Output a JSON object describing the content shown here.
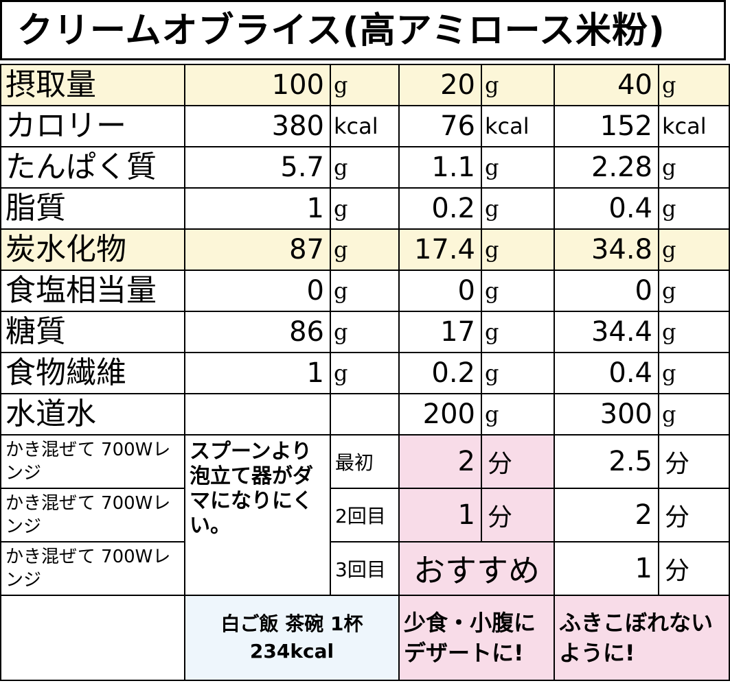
{
  "title": "クリームオブライス(高アミロース米粉)",
  "rows": [
    {
      "label": "摂取量",
      "hl": true,
      "v": [
        "100",
        "20",
        "40"
      ],
      "u": [
        "g",
        "g",
        "g"
      ]
    },
    {
      "label": "カロリー",
      "hl": false,
      "v": [
        "380",
        "76",
        "152"
      ],
      "u": [
        "kcal",
        "kcal",
        "kcal"
      ]
    },
    {
      "label": "たんぱく質",
      "hl": false,
      "v": [
        "5.7",
        "1.1",
        "2.28"
      ],
      "u": [
        "g",
        "g",
        "g"
      ]
    },
    {
      "label": "脂質",
      "hl": false,
      "v": [
        "1",
        "0.2",
        "0.4"
      ],
      "u": [
        "g",
        "g",
        "g"
      ]
    },
    {
      "label": "炭水化物",
      "hl": true,
      "v": [
        "87",
        "17.4",
        "34.8"
      ],
      "u": [
        "g",
        "g",
        "g"
      ]
    },
    {
      "label": "食塩相当量",
      "hl": false,
      "v": [
        "0",
        "0",
        "0"
      ],
      "u": [
        "g",
        "g",
        "g"
      ]
    },
    {
      "label": "糖質",
      "hl": false,
      "v": [
        "86",
        "17",
        "34.4"
      ],
      "u": [
        "g",
        "g",
        "g"
      ]
    },
    {
      "label": "食物繊維",
      "hl": false,
      "v": [
        "1",
        "0.2",
        "0.4"
      ],
      "u": [
        "g",
        "g",
        "g"
      ]
    },
    {
      "label": "水道水",
      "hl": false,
      "v": [
        "",
        "200",
        "300"
      ],
      "u": [
        "",
        "g",
        "g"
      ]
    }
  ],
  "microwave": {
    "label": "かき混ぜて 700Wレンジ",
    "note": "スプーンより泡立て器がダマになりにくい。",
    "steps": [
      {
        "order": "最初",
        "v1": "2",
        "u1": "分",
        "v2": "2.5",
        "u2": "分"
      },
      {
        "order": "2回目",
        "v1": "1",
        "u1": "分",
        "v2": "2",
        "u2": "分"
      },
      {
        "order": "3回目",
        "v1": "おすすめ",
        "u1": "",
        "v2": "1",
        "u2": "分"
      }
    ]
  },
  "footer": {
    "rice": "白ご飯 茶碗 1杯 234kcal",
    "dessert": "少食・小腹にデザートに!",
    "caution": "ふきこぼれないように!"
  }
}
